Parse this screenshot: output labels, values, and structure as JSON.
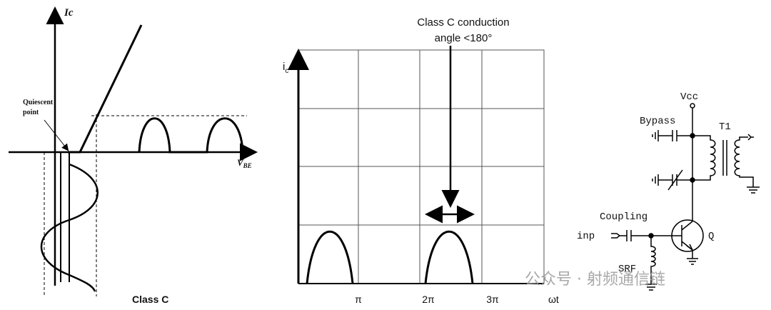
{
  "left_panel": {
    "y_axis_label": "Ic",
    "quiescent_label_lines": [
      "Quiescent",
      "point"
    ],
    "x_axis_label": {
      "main": "V",
      "sub": "BE"
    },
    "caption": "Class C"
  },
  "middle_panel": {
    "title_lines": [
      "Class C conduction",
      "angle <180°"
    ],
    "y_axis_label": {
      "main": "i",
      "sub": "c"
    },
    "x_ticks": [
      "π",
      "2π",
      "3π"
    ],
    "x_axis_label": "ωt"
  },
  "right_panel": {
    "labels": {
      "vcc": "Vcc",
      "bypass": "Bypass",
      "transformer": "T1",
      "coupling": "Coupling",
      "input": "inp",
      "transistor": "Q",
      "choke": "SRF"
    }
  },
  "watermark": "公众号 · 射频通信链"
}
